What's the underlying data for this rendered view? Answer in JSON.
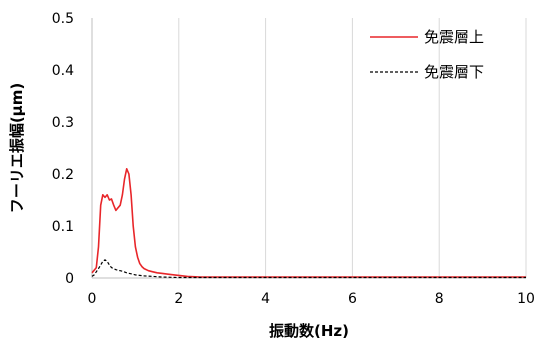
{
  "chart_data": {
    "type": "line",
    "title": "",
    "xlabel": "振動数(Hz)",
    "ylabel": "フーリエ振幅(μm)",
    "xlim": [
      0,
      10
    ],
    "ylim": [
      0,
      0.5
    ],
    "x_ticks": [
      0,
      2,
      4,
      6,
      8,
      10
    ],
    "y_ticks": [
      0,
      0.1,
      0.2,
      0.3,
      0.4,
      0.5
    ],
    "x_tick_labels": [
      "0",
      "2",
      "4",
      "6",
      "8",
      "10"
    ],
    "y_tick_labels": [
      "0",
      "0.1",
      "0.2",
      "0.3",
      "0.4",
      "0.5"
    ],
    "grid": "vertical",
    "legend_position": "top-right",
    "series": [
      {
        "name": "免震層上",
        "color": "#e8262a",
        "style": "solid",
        "x": [
          0,
          0.05,
          0.1,
          0.15,
          0.2,
          0.25,
          0.3,
          0.35,
          0.4,
          0.45,
          0.5,
          0.55,
          0.6,
          0.65,
          0.7,
          0.75,
          0.8,
          0.85,
          0.9,
          0.95,
          1.0,
          1.05,
          1.1,
          1.15,
          1.2,
          1.3,
          1.4,
          1.5,
          1.6,
          1.8,
          2.0,
          2.2,
          2.5,
          3.0,
          4.0,
          5.0,
          6.0,
          7.0,
          8.0,
          9.0,
          10.0
        ],
        "values": [
          0.01,
          0.015,
          0.02,
          0.06,
          0.14,
          0.16,
          0.155,
          0.16,
          0.15,
          0.152,
          0.14,
          0.13,
          0.135,
          0.14,
          0.16,
          0.19,
          0.21,
          0.2,
          0.16,
          0.1,
          0.06,
          0.04,
          0.028,
          0.022,
          0.018,
          0.014,
          0.012,
          0.01,
          0.009,
          0.007,
          0.005,
          0.003,
          0.002,
          0.002,
          0.002,
          0.002,
          0.002,
          0.002,
          0.002,
          0.002,
          0.002
        ]
      },
      {
        "name": "免震層下",
        "color": "#000000",
        "style": "dashed",
        "x": [
          0,
          0.05,
          0.1,
          0.15,
          0.2,
          0.25,
          0.3,
          0.35,
          0.4,
          0.45,
          0.5,
          0.55,
          0.6,
          0.65,
          0.7,
          0.8,
          0.9,
          1.0,
          1.2,
          1.4,
          1.6,
          2.0,
          3.0,
          4.0,
          5.0,
          6.0,
          7.0,
          8.0,
          9.0,
          10.0
        ],
        "values": [
          0.003,
          0.006,
          0.012,
          0.018,
          0.025,
          0.032,
          0.035,
          0.032,
          0.025,
          0.02,
          0.018,
          0.016,
          0.015,
          0.014,
          0.013,
          0.01,
          0.008,
          0.006,
          0.004,
          0.003,
          0.002,
          0.001,
          0.001,
          0.001,
          0.001,
          0.001,
          0.001,
          0.001,
          0.001,
          0.001
        ]
      }
    ]
  },
  "colors": {
    "grid": "#d9d9d9",
    "axis": "#bfbfbf"
  }
}
